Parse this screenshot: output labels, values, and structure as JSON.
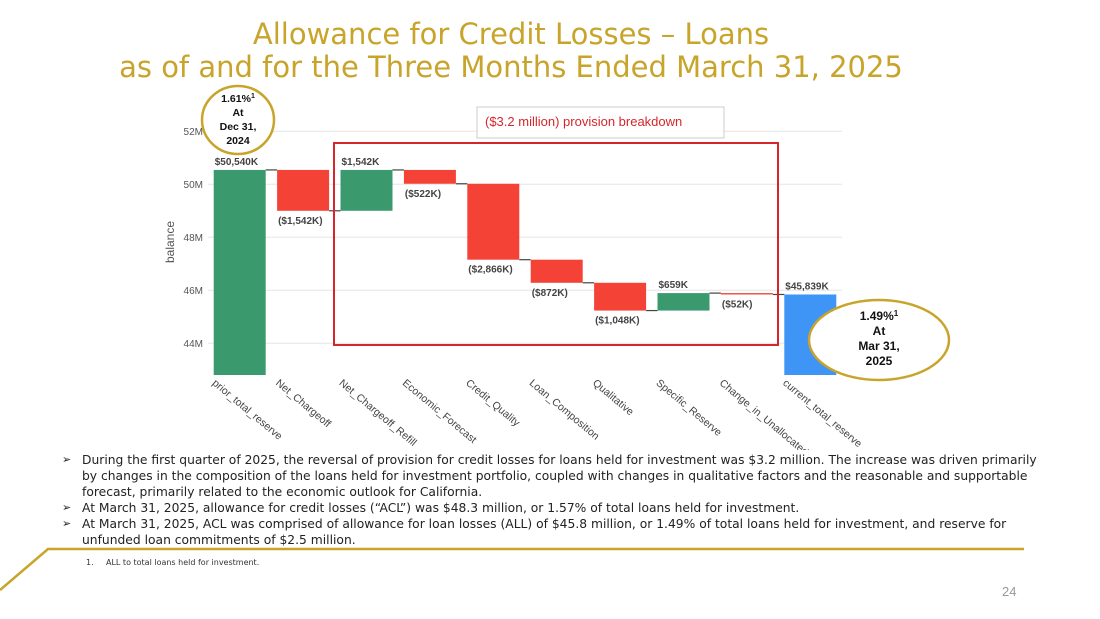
{
  "slide": {
    "title_line1": "Allowance for Credit Losses – Loans",
    "title_line2": "as of and for the Three Months Ended March 31, 2025",
    "page_number": "24",
    "colors": {
      "gold": "#c8a42a",
      "increase": "#3a9a6e",
      "decrease": "#f44336",
      "total": "#3e95f5",
      "box": "#d6262b"
    }
  },
  "callouts": {
    "start": {
      "pct": "1.61%",
      "sup": "1",
      "line2": "At",
      "line3": "Dec 31,",
      "line4": "2024"
    },
    "end": {
      "pct": "1.49%",
      "sup": "1",
      "line2": "At",
      "line3": "Mar 31,",
      "line4": "2025"
    }
  },
  "box_label": "($3.2 million) provision breakdown",
  "chart_data": {
    "type": "waterfall",
    "ylabel": "balance",
    "ylim": [
      42.8,
      52.5
    ],
    "y_ticks": [
      44,
      46,
      48,
      50,
      52
    ],
    "y_tick_labels": [
      "44M",
      "46M",
      "48M",
      "50M",
      "52M"
    ],
    "grid": true,
    "categories": [
      "prior_total_reserve",
      "Net_Chargeoff",
      "Net_Chargeoff_Refill",
      "Economic_Forecast",
      "Credit_Quality",
      "Loan_Composition",
      "Qualitative",
      "Specific_Reserve",
      "Change_in_Unallocated",
      "current_total_reserve"
    ],
    "values": [
      50540,
      -1542,
      1542,
      -522,
      -2866,
      -872,
      -1048,
      659,
      -52,
      45839
    ],
    "measure": [
      "absolute",
      "relative",
      "relative",
      "relative",
      "relative",
      "relative",
      "relative",
      "relative",
      "relative",
      "total"
    ],
    "labels": [
      "$50,540K",
      "($1,542K)",
      "$1,542K",
      "($522K)",
      "($2,866K)",
      "($872K)",
      "($1,048K)",
      "$659K",
      "($52K)",
      "$45,839K"
    ],
    "units": "thousands"
  },
  "bullets": [
    "During the first quarter of 2025, the reversal of provision for credit losses for loans held for investment was $3.2 million. The increase was driven primarily by changes in the composition of the loans held for investment portfolio, coupled with changes in qualitative factors and the reasonable and supportable forecast, primarily related to the economic outlook for California.",
    "At March 31, 2025, allowance for credit losses (“ACL”) was $48.3 million, or 1.57% of total loans held for investment.",
    "At March 31, 2025,  ACL was comprised of allowance for loan losses (ALL) of $45.8 million, or 1.49% of total loans held for investment, and reserve for unfunded loan commitments of $2.5 million."
  ],
  "footnote": {
    "number": "1.",
    "text": "ALL to total loans held for investment."
  }
}
